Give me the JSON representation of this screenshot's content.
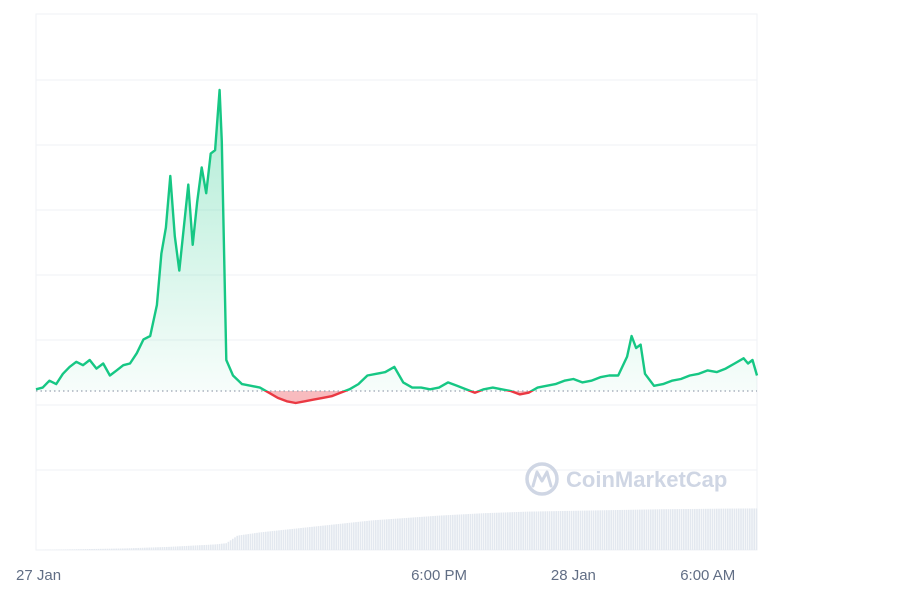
{
  "watermark": "CoinMarketCap",
  "colors": {
    "up": "#16c784",
    "down": "#ea3943",
    "grid": "#eff2f5",
    "baseline": "#9aa3b2",
    "volume": "#e3e8ef",
    "tick_text": "#616e85"
  },
  "chart_data": {
    "type": "line",
    "title": "",
    "xlabel": "",
    "ylabel": "",
    "x_unit": "hours since 27 Jan 00:00",
    "baseline_value": 0,
    "grid": true,
    "x_ticks": [
      {
        "x": 0,
        "label": "27 Jan"
      },
      {
        "x": 18,
        "label": "6:00 PM"
      },
      {
        "x": 24,
        "label": "28 Jan"
      },
      {
        "x": 30,
        "label": "6:00 AM"
      }
    ],
    "price_series": [
      [
        0,
        0.1
      ],
      [
        0.3,
        0.2
      ],
      [
        0.6,
        0.6
      ],
      [
        0.9,
        0.4
      ],
      [
        1.2,
        1.0
      ],
      [
        1.5,
        1.4
      ],
      [
        1.8,
        1.7
      ],
      [
        2.1,
        1.5
      ],
      [
        2.4,
        1.8
      ],
      [
        2.7,
        1.3
      ],
      [
        3.0,
        1.6
      ],
      [
        3.3,
        0.9
      ],
      [
        3.6,
        1.2
      ],
      [
        3.9,
        1.5
      ],
      [
        4.2,
        1.6
      ],
      [
        4.5,
        2.2
      ],
      [
        4.8,
        3.0
      ],
      [
        5.1,
        3.2
      ],
      [
        5.4,
        5.0
      ],
      [
        5.6,
        8.0
      ],
      [
        5.8,
        9.5
      ],
      [
        6.0,
        12.5
      ],
      [
        6.2,
        9.0
      ],
      [
        6.4,
        7.0
      ],
      [
        6.6,
        9.5
      ],
      [
        6.8,
        12.0
      ],
      [
        7.0,
        8.5
      ],
      [
        7.2,
        11.0
      ],
      [
        7.4,
        13.0
      ],
      [
        7.6,
        11.5
      ],
      [
        7.8,
        13.8
      ],
      [
        8.0,
        14.0
      ],
      [
        8.2,
        17.5
      ],
      [
        8.3,
        14.5
      ],
      [
        8.5,
        1.8
      ],
      [
        8.8,
        0.9
      ],
      [
        9.2,
        0.4
      ],
      [
        9.6,
        0.3
      ],
      [
        10.0,
        0.2
      ],
      [
        10.4,
        -0.1
      ],
      [
        10.8,
        -0.4
      ],
      [
        11.2,
        -0.6
      ],
      [
        11.6,
        -0.7
      ],
      [
        12.0,
        -0.6
      ],
      [
        12.4,
        -0.5
      ],
      [
        12.8,
        -0.4
      ],
      [
        13.2,
        -0.3
      ],
      [
        13.6,
        -0.1
      ],
      [
        14.0,
        0.1
      ],
      [
        14.4,
        0.4
      ],
      [
        14.8,
        0.9
      ],
      [
        15.2,
        1.0
      ],
      [
        15.6,
        1.1
      ],
      [
        16.0,
        1.4
      ],
      [
        16.4,
        0.5
      ],
      [
        16.8,
        0.2
      ],
      [
        17.2,
        0.2
      ],
      [
        17.6,
        0.1
      ],
      [
        18.0,
        0.2
      ],
      [
        18.4,
        0.5
      ],
      [
        18.8,
        0.3
      ],
      [
        19.2,
        0.1
      ],
      [
        19.6,
        -0.1
      ],
      [
        20.0,
        0.1
      ],
      [
        20.4,
        0.2
      ],
      [
        20.8,
        0.1
      ],
      [
        21.2,
        0.0
      ],
      [
        21.6,
        -0.2
      ],
      [
        22.0,
        -0.1
      ],
      [
        22.4,
        0.2
      ],
      [
        22.8,
        0.3
      ],
      [
        23.2,
        0.4
      ],
      [
        23.6,
        0.6
      ],
      [
        24.0,
        0.7
      ],
      [
        24.4,
        0.5
      ],
      [
        24.8,
        0.6
      ],
      [
        25.2,
        0.8
      ],
      [
        25.6,
        0.9
      ],
      [
        26.0,
        0.9
      ],
      [
        26.4,
        2.0
      ],
      [
        26.6,
        3.2
      ],
      [
        26.8,
        2.5
      ],
      [
        27.0,
        2.7
      ],
      [
        27.2,
        1.0
      ],
      [
        27.6,
        0.3
      ],
      [
        28.0,
        0.4
      ],
      [
        28.4,
        0.6
      ],
      [
        28.8,
        0.7
      ],
      [
        29.2,
        0.9
      ],
      [
        29.6,
        1.0
      ],
      [
        30.0,
        1.2
      ],
      [
        30.4,
        1.1
      ],
      [
        30.8,
        1.3
      ],
      [
        31.2,
        1.6
      ],
      [
        31.6,
        1.9
      ],
      [
        31.8,
        1.6
      ],
      [
        32.0,
        1.8
      ],
      [
        32.2,
        0.9
      ]
    ],
    "volume_series": [
      [
        0,
        0.0
      ],
      [
        1.0,
        0.05
      ],
      [
        2.0,
        0.1
      ],
      [
        3.0,
        0.15
      ],
      [
        4.0,
        0.2
      ],
      [
        5.0,
        0.3
      ],
      [
        6.0,
        0.4
      ],
      [
        7.0,
        0.55
      ],
      [
        8.0,
        0.7
      ],
      [
        8.5,
        0.85
      ],
      [
        9.0,
        1.8
      ],
      [
        10.0,
        2.2
      ],
      [
        11.0,
        2.5
      ],
      [
        12.0,
        2.8
      ],
      [
        13.0,
        3.1
      ],
      [
        14.0,
        3.4
      ],
      [
        15.0,
        3.7
      ],
      [
        16.0,
        3.9
      ],
      [
        17.0,
        4.1
      ],
      [
        18.0,
        4.3
      ],
      [
        19.0,
        4.45
      ],
      [
        20.0,
        4.6
      ],
      [
        21.0,
        4.7
      ],
      [
        22.0,
        4.8
      ],
      [
        23.0,
        4.85
      ],
      [
        24.0,
        4.9
      ],
      [
        25.0,
        4.95
      ],
      [
        26.0,
        5.0
      ],
      [
        27.0,
        5.05
      ],
      [
        28.0,
        5.1
      ],
      [
        29.0,
        5.12
      ],
      [
        30.0,
        5.15
      ],
      [
        31.0,
        5.18
      ],
      [
        32.2,
        5.2
      ]
    ],
    "y_range": [
      -2.5,
      20
    ],
    "volume_range": [
      0,
      10
    ],
    "x_range": [
      0,
      32.2
    ]
  }
}
